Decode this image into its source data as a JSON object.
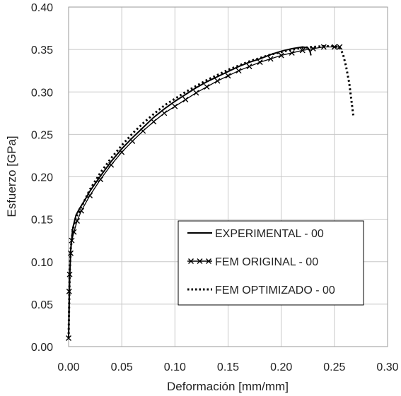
{
  "chart_data": {
    "type": "line",
    "xlabel": "Deformación [mm/mm]",
    "ylabel": "Esfuerzo [GPa]",
    "xlim": [
      0,
      0.3
    ],
    "ylim": [
      0,
      0.4
    ],
    "x_ticks": [
      0.0,
      0.05,
      0.1,
      0.15,
      0.2,
      0.25,
      0.3
    ],
    "y_ticks": [
      0.0,
      0.05,
      0.1,
      0.15,
      0.2,
      0.25,
      0.3,
      0.35,
      0.4
    ],
    "x_tick_labels": [
      "0.00",
      "0.05",
      "0.10",
      "0.15",
      "0.20",
      "0.25",
      "0.30"
    ],
    "y_tick_labels": [
      "0.00",
      "0.05",
      "0.10",
      "0.15",
      "0.20",
      "0.25",
      "0.30",
      "0.35",
      "0.40"
    ],
    "grid": true,
    "legend_position": "bottom-right",
    "series": [
      {
        "name": "EXPERIMENTAL - 00",
        "style": "solid",
        "color": "#000000",
        "x": [
          0.0,
          0.001,
          0.002,
          0.004,
          0.007,
          0.01,
          0.015,
          0.02,
          0.03,
          0.04,
          0.05,
          0.06,
          0.07,
          0.08,
          0.09,
          0.1,
          0.11,
          0.12,
          0.13,
          0.14,
          0.15,
          0.16,
          0.17,
          0.18,
          0.19,
          0.2,
          0.21,
          0.215,
          0.22,
          0.225,
          0.227,
          0.228
        ],
        "y": [
          0.01,
          0.08,
          0.115,
          0.14,
          0.155,
          0.162,
          0.172,
          0.183,
          0.201,
          0.218,
          0.233,
          0.246,
          0.258,
          0.27,
          0.28,
          0.289,
          0.297,
          0.305,
          0.312,
          0.318,
          0.324,
          0.33,
          0.335,
          0.339,
          0.344,
          0.348,
          0.351,
          0.352,
          0.353,
          0.352,
          0.348,
          0.343
        ]
      },
      {
        "name": "FEM ORIGINAL - 00",
        "style": "cross",
        "color": "#000000",
        "x": [
          0.0,
          0.0005,
          0.001,
          0.002,
          0.003,
          0.005,
          0.008,
          0.012,
          0.02,
          0.03,
          0.04,
          0.05,
          0.06,
          0.07,
          0.08,
          0.09,
          0.1,
          0.11,
          0.12,
          0.13,
          0.14,
          0.15,
          0.16,
          0.17,
          0.18,
          0.19,
          0.2,
          0.21,
          0.22,
          0.23,
          0.24,
          0.25,
          0.255
        ],
        "y": [
          0.01,
          0.065,
          0.085,
          0.11,
          0.125,
          0.135,
          0.148,
          0.16,
          0.178,
          0.197,
          0.214,
          0.229,
          0.242,
          0.254,
          0.265,
          0.275,
          0.283,
          0.291,
          0.299,
          0.306,
          0.313,
          0.319,
          0.325,
          0.33,
          0.335,
          0.339,
          0.343,
          0.346,
          0.349,
          0.351,
          0.353,
          0.353,
          0.353
        ]
      },
      {
        "name": "FEM OPTIMIZADO - 00",
        "style": "dotted",
        "color": "#000000",
        "x": [
          0.0,
          0.001,
          0.002,
          0.004,
          0.007,
          0.01,
          0.015,
          0.02,
          0.03,
          0.04,
          0.05,
          0.06,
          0.07,
          0.08,
          0.09,
          0.1,
          0.11,
          0.12,
          0.13,
          0.14,
          0.15,
          0.16,
          0.17,
          0.18,
          0.19,
          0.2,
          0.21,
          0.22,
          0.23,
          0.24,
          0.25,
          0.255,
          0.258,
          0.261,
          0.264,
          0.266,
          0.268
        ],
        "y": [
          0.01,
          0.085,
          0.115,
          0.138,
          0.152,
          0.16,
          0.172,
          0.185,
          0.205,
          0.222,
          0.237,
          0.251,
          0.263,
          0.274,
          0.284,
          0.292,
          0.3,
          0.307,
          0.314,
          0.32,
          0.326,
          0.331,
          0.336,
          0.34,
          0.344,
          0.347,
          0.35,
          0.352,
          0.353,
          0.354,
          0.354,
          0.352,
          0.345,
          0.33,
          0.31,
          0.29,
          0.27
        ]
      }
    ]
  }
}
